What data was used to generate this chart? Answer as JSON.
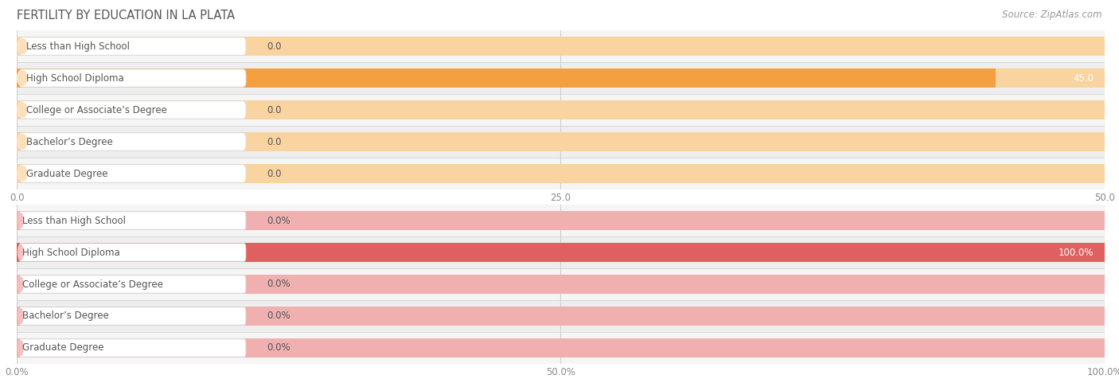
{
  "title": "FERTILITY BY EDUCATION IN LA PLATA",
  "source": "Source: ZipAtlas.com",
  "top_chart": {
    "categories": [
      "Less than High School",
      "High School Diploma",
      "College or Associate’s Degree",
      "Bachelor’s Degree",
      "Graduate Degree"
    ],
    "values": [
      0.0,
      45.0,
      0.0,
      0.0,
      0.0
    ],
    "bar_color_full": "#f5a040",
    "bar_color_empty": "#fad4a0",
    "label_bg": "#fce0bc",
    "label_color": "#555555",
    "xlim": [
      0,
      50.0
    ],
    "xticks": [
      0.0,
      25.0,
      50.0
    ],
    "row_colors": [
      "#f5f5f5",
      "#eeeeee"
    ]
  },
  "bottom_chart": {
    "categories": [
      "Less than High School",
      "High School Diploma",
      "College or Associate’s Degree",
      "Bachelor’s Degree",
      "Graduate Degree"
    ],
    "values": [
      0.0,
      100.0,
      0.0,
      0.0,
      0.0
    ],
    "bar_color_full": "#e06060",
    "bar_color_empty": "#f0b0b0",
    "label_bg": "#f5c0c0",
    "label_color": "#555555",
    "xlim": [
      0,
      100.0
    ],
    "xticks": [
      0.0,
      50.0,
      100.0
    ],
    "row_colors": [
      "#f5f5f5",
      "#eeeeee"
    ]
  },
  "title_fontsize": 10.5,
  "source_fontsize": 8.5,
  "label_fontsize": 8.5,
  "value_fontsize": 8.5,
  "tick_fontsize": 8.5,
  "background_color": "#ffffff",
  "grid_color": "#d0d0d0",
  "separator_color": "#cccccc"
}
